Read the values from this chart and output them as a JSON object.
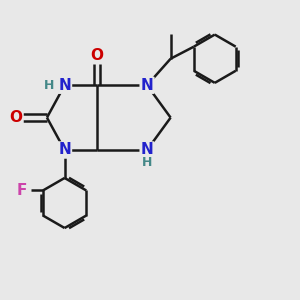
{
  "bg_color": "#e8e8e8",
  "bond_color": "#1a1a1a",
  "N_color": "#2222cc",
  "O_color": "#cc0000",
  "F_color": "#cc44aa",
  "H_color": "#448888",
  "line_width": 1.8,
  "font_size_atom": 11,
  "font_size_H": 9,
  "xlim": [
    0,
    10
  ],
  "ylim": [
    0,
    10
  ]
}
